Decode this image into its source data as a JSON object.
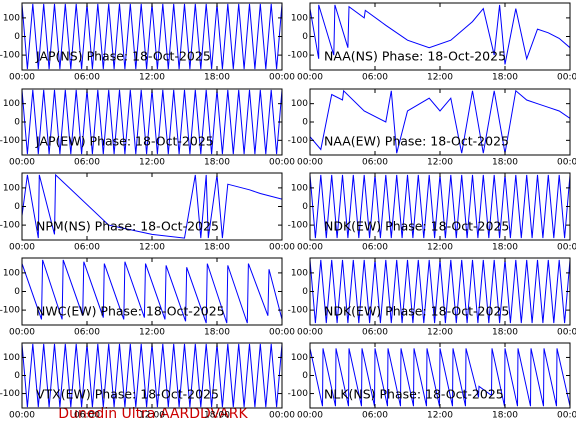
{
  "chart_data": [
    {
      "type": "line",
      "title": "JAP(NS) Phase: 18-Oct-2025",
      "xlim": [
        0,
        24
      ],
      "ylim": [
        -180,
        180
      ],
      "xticks": [
        {
          "value": 0,
          "label": "00:00"
        },
        {
          "value": 6,
          "label": "06:00"
        },
        {
          "value": 12,
          "label": "12:00"
        },
        {
          "value": 18,
          "label": "18:00"
        },
        {
          "value": 24,
          "label": "00:00"
        }
      ],
      "yticks": [
        100,
        0,
        -100
      ],
      "x": [
        0,
        0.5,
        1,
        1.5,
        2,
        2.5,
        3,
        3.5,
        4,
        4.5,
        5,
        5.5,
        6,
        6.5,
        7,
        7.5,
        8,
        8.5,
        9,
        9.5,
        10,
        10.5,
        11,
        11.5,
        12,
        12.5,
        13,
        13.5,
        14,
        14.5,
        15,
        15.5,
        16,
        16.5,
        17,
        17.5,
        18,
        18.5,
        19,
        19.5,
        20,
        20.5,
        21,
        21.5,
        22,
        22.5,
        23,
        23.5,
        24
      ],
      "series": [
        {
          "color": "#0000ff",
          "values": [
            175,
            -175,
            175,
            -175,
            175,
            -175,
            175,
            -175,
            175,
            -175,
            175,
            -175,
            175,
            -175,
            175,
            -175,
            175,
            -175,
            175,
            -175,
            175,
            -175,
            175,
            -175,
            175,
            -175,
            175,
            -175,
            175,
            -175,
            175,
            -175,
            175,
            -175,
            175,
            -175,
            175,
            -175,
            175,
            -175,
            175,
            -175,
            175,
            -175,
            175,
            -175,
            175,
            -175,
            175
          ]
        }
      ]
    },
    {
      "type": "line",
      "title": "NAA(NS) Phase: 18-Oct-2025",
      "xlim": [
        0,
        24
      ],
      "ylim": [
        -180,
        180
      ],
      "xticks": [
        {
          "value": 0,
          "label": "00:00"
        },
        {
          "value": 6,
          "label": "06:00"
        },
        {
          "value": 12,
          "label": "12:00"
        },
        {
          "value": 18,
          "label": "18:00"
        },
        {
          "value": 24,
          "label": "00:00"
        }
      ],
      "yticks": [
        100,
        0,
        -100
      ],
      "x": [
        0,
        0.8,
        0.8,
        2.2,
        2.3,
        3.5,
        3.6,
        5,
        5.1,
        7,
        9,
        11,
        13,
        15,
        16,
        17,
        17.5,
        18,
        19,
        20,
        21,
        22,
        23,
        24
      ],
      "series": [
        {
          "color": "#0000ff",
          "values": [
            150,
            -120,
            170,
            -100,
            170,
            -60,
            160,
            100,
            140,
            60,
            -20,
            -60,
            -20,
            80,
            150,
            -100,
            170,
            -150,
            150,
            -120,
            40,
            20,
            -10,
            -60
          ]
        }
      ]
    },
    {
      "type": "line",
      "title": "JAP(EW) Phase: 18-Oct-2025",
      "xlim": [
        0,
        24
      ],
      "ylim": [
        -180,
        180
      ],
      "xticks": [
        {
          "value": 0,
          "label": "00:00"
        },
        {
          "value": 6,
          "label": "06:00"
        },
        {
          "value": 12,
          "label": "12:00"
        },
        {
          "value": 18,
          "label": "18:00"
        },
        {
          "value": 24,
          "label": "00:00"
        }
      ],
      "yticks": [
        100,
        0,
        -100
      ],
      "x": [
        0,
        0.5,
        1,
        1.5,
        2,
        2.5,
        3,
        3.5,
        4,
        4.5,
        5,
        5.5,
        6,
        6.5,
        7,
        7.5,
        8,
        8.5,
        9,
        9.5,
        10,
        10.5,
        11,
        11.5,
        12,
        12.5,
        13,
        13.5,
        14,
        14.5,
        15,
        15.5,
        16,
        16.5,
        17,
        17.5,
        18,
        18.5,
        19,
        19.5,
        20,
        20.5,
        21,
        21.5,
        22,
        22.5,
        23,
        23.5,
        24
      ],
      "series": [
        {
          "color": "#0000ff",
          "values": [
            175,
            -175,
            175,
            -175,
            175,
            -175,
            175,
            -175,
            175,
            -175,
            175,
            -175,
            175,
            -175,
            175,
            -175,
            175,
            -175,
            175,
            -175,
            175,
            -175,
            175,
            -175,
            175,
            -175,
            175,
            -175,
            175,
            -175,
            175,
            -175,
            175,
            -175,
            175,
            -175,
            175,
            -175,
            175,
            -175,
            175,
            -175,
            175,
            -175,
            175,
            -175,
            175,
            -175,
            175
          ]
        }
      ]
    },
    {
      "type": "line",
      "title": "NAA(EW) Phase: 18-Oct-2025",
      "xlim": [
        0,
        24
      ],
      "ylim": [
        -180,
        180
      ],
      "xticks": [
        {
          "value": 0,
          "label": "00:00"
        },
        {
          "value": 6,
          "label": "06:00"
        },
        {
          "value": 12,
          "label": "12:00"
        },
        {
          "value": 18,
          "label": "18:00"
        },
        {
          "value": 24,
          "label": "00:00"
        }
      ],
      "yticks": [
        100,
        0,
        -100
      ],
      "x": [
        0,
        1,
        2,
        3,
        3.1,
        5,
        7,
        7.5,
        8,
        9,
        11,
        12,
        13,
        14,
        15,
        16,
        17,
        18,
        19,
        20,
        21,
        22,
        23,
        24
      ],
      "series": [
        {
          "color": "#0000ff",
          "values": [
            -80,
            -150,
            150,
            120,
            170,
            60,
            0,
            170,
            -170,
            60,
            130,
            60,
            130,
            -170,
            170,
            -170,
            170,
            -170,
            170,
            120,
            100,
            80,
            60,
            20
          ]
        }
      ]
    },
    {
      "type": "line",
      "title": "NPM(NS) Phase: 18-Oct-2025",
      "xlim": [
        0,
        24
      ],
      "ylim": [
        -180,
        180
      ],
      "xticks": [
        {
          "value": 0,
          "label": "00:00"
        },
        {
          "value": 6,
          "label": "06:00"
        },
        {
          "value": 12,
          "label": "12:00"
        },
        {
          "value": 18,
          "label": "18:00"
        },
        {
          "value": 24,
          "label": "00:00"
        }
      ],
      "yticks": [
        100,
        0,
        -100
      ],
      "x": [
        0,
        0.5,
        1.5,
        1.6,
        3,
        3.1,
        8,
        12,
        15,
        16,
        16.5,
        17,
        17.2,
        18,
        18.5,
        19,
        21,
        22,
        24
      ],
      "series": [
        {
          "color": "#0000ff",
          "values": [
            -50,
            170,
            -170,
            170,
            -150,
            170,
            -100,
            -150,
            -170,
            170,
            -170,
            170,
            -170,
            170,
            -170,
            120,
            90,
            70,
            40
          ]
        }
      ]
    },
    {
      "type": "line",
      "title": "NDK(EW) Phase: 18-Oct-2025",
      "xlim": [
        0,
        24
      ],
      "ylim": [
        -180,
        180
      ],
      "xticks": [
        {
          "value": 0,
          "label": "00:00"
        },
        {
          "value": 6,
          "label": "06:00"
        },
        {
          "value": 12,
          "label": "12:00"
        },
        {
          "value": 18,
          "label": "18:00"
        },
        {
          "value": 24,
          "label": "00:00"
        }
      ],
      "yticks": [
        100,
        0,
        -100
      ],
      "x": [
        0,
        0.5,
        1,
        1.5,
        2,
        2.5,
        3,
        3.5,
        4,
        4.5,
        5,
        5.5,
        6,
        6.5,
        7,
        7.5,
        8,
        8.5,
        9,
        9.5,
        10,
        10.5,
        11,
        11.5,
        12,
        12.5,
        13,
        13.5,
        14,
        14.5,
        15,
        15.5,
        16,
        16.5,
        17,
        17.5,
        18,
        18.5,
        19,
        19.5,
        20,
        20.5,
        21,
        21.5,
        22,
        22.5,
        23,
        23.5,
        24
      ],
      "series": [
        {
          "color": "#0000ff",
          "values": [
            170,
            -170,
            170,
            -170,
            170,
            -170,
            170,
            -170,
            170,
            -170,
            170,
            -170,
            170,
            -170,
            170,
            -170,
            170,
            -170,
            170,
            -170,
            170,
            -170,
            170,
            -170,
            170,
            -170,
            170,
            -170,
            170,
            -170,
            170,
            -170,
            170,
            -170,
            170,
            -170,
            170,
            -170,
            170,
            -170,
            170,
            -170,
            170,
            -170,
            170,
            -170,
            170,
            -170,
            170
          ]
        }
      ]
    },
    {
      "type": "line",
      "title": "NWC(EW) Phase: 18-Oct-2025",
      "xlim": [
        0,
        24
      ],
      "ylim": [
        -180,
        180
      ],
      "xticks": [
        {
          "value": 0,
          "label": "00:00"
        },
        {
          "value": 6,
          "label": "06:00"
        },
        {
          "value": 12,
          "label": "12:00"
        },
        {
          "value": 18,
          "label": "18:00"
        },
        {
          "value": 24,
          "label": "00:00"
        }
      ],
      "yticks": [
        100,
        0,
        -100
      ],
      "x": [
        0,
        1.8,
        1.9,
        3.7,
        3.8,
        5.6,
        5.7,
        7.5,
        7.6,
        9.4,
        9.5,
        11.3,
        11.4,
        13.2,
        13.3,
        15.1,
        15.2,
        17,
        17.1,
        18.9,
        19,
        20.8,
        20.9,
        22.7,
        22.8,
        24
      ],
      "series": [
        {
          "color": "#0000ff",
          "values": [
            150,
            -150,
            170,
            -150,
            170,
            -130,
            160,
            -140,
            150,
            -150,
            160,
            -140,
            150,
            -150,
            140,
            -160,
            130,
            -170,
            150,
            -170,
            140,
            -170,
            150,
            -130,
            120,
            -150
          ]
        }
      ]
    },
    {
      "type": "line",
      "title": "NDK(EW) Phase: 18-Oct-2025",
      "xlim": [
        0,
        24
      ],
      "ylim": [
        -180,
        180
      ],
      "xticks": [
        {
          "value": 0,
          "label": "00:00"
        },
        {
          "value": 6,
          "label": "06:00"
        },
        {
          "value": 12,
          "label": "12:00"
        },
        {
          "value": 18,
          "label": "18:00"
        },
        {
          "value": 24,
          "label": "00:00"
        }
      ],
      "yticks": [
        100,
        0,
        -100
      ],
      "x": [
        0,
        0.5,
        1,
        1.5,
        2,
        2.5,
        3,
        3.5,
        4,
        4.5,
        5,
        5.5,
        6,
        6.5,
        7,
        7.5,
        8,
        8.5,
        9,
        9.5,
        10,
        10.5,
        11,
        11.5,
        12,
        12.5,
        13,
        13.5,
        14,
        14.5,
        15,
        15.5,
        16,
        16.5,
        17,
        17.5,
        18,
        18.5,
        19,
        19.5,
        20,
        20.5,
        21,
        21.5,
        22,
        22.5,
        23,
        23.5,
        24
      ],
      "series": [
        {
          "color": "#0000ff",
          "values": [
            170,
            -170,
            170,
            -170,
            170,
            -170,
            170,
            -170,
            170,
            -170,
            170,
            -170,
            170,
            -170,
            170,
            -170,
            170,
            -170,
            170,
            -170,
            170,
            -170,
            170,
            -170,
            170,
            -170,
            170,
            -170,
            170,
            -170,
            170,
            -170,
            170,
            -170,
            170,
            -170,
            170,
            -170,
            170,
            -170,
            170,
            -170,
            170,
            -170,
            170,
            -170,
            170,
            -170,
            170
          ]
        }
      ]
    },
    {
      "type": "line",
      "title": "VTX(EW) Phase: 18-Oct-2025",
      "xlim": [
        0,
        24
      ],
      "ylim": [
        -180,
        180
      ],
      "xticks": [
        {
          "value": 0,
          "label": "00:00"
        },
        {
          "value": 6,
          "label": "06:00"
        },
        {
          "value": 12,
          "label": "12:00"
        },
        {
          "value": 18,
          "label": "18:00"
        },
        {
          "value": 24,
          "label": "00:00"
        }
      ],
      "yticks": [
        100,
        0,
        -100
      ],
      "x": [
        0,
        0.5,
        1,
        1.5,
        2,
        2.5,
        3,
        3.5,
        4,
        4.5,
        5,
        5.5,
        6,
        6.5,
        7,
        7.5,
        8,
        8.5,
        9,
        9.5,
        10,
        10.5,
        11,
        11.5,
        12,
        12.5,
        13,
        13.5,
        14,
        14.5,
        15,
        15.5,
        16,
        16.5,
        17,
        17.5,
        18,
        18.5,
        19,
        19.5,
        20,
        20.5,
        21,
        21.5,
        22,
        22.5,
        23,
        23.5,
        24
      ],
      "series": [
        {
          "color": "#0000ff",
          "values": [
            175,
            -175,
            175,
            -175,
            175,
            -175,
            175,
            -175,
            175,
            -175,
            175,
            -175,
            175,
            -175,
            175,
            -175,
            175,
            -175,
            175,
            -175,
            175,
            -175,
            175,
            -175,
            175,
            -175,
            175,
            -175,
            175,
            -175,
            175,
            -175,
            175,
            -175,
            175,
            -175,
            175,
            -175,
            175,
            -175,
            175,
            -175,
            175,
            -175,
            175,
            -175,
            175,
            -175,
            175
          ]
        }
      ]
    },
    {
      "type": "line",
      "title": "NLK(NS) Phase: 18-Oct-2025",
      "xlim": [
        0,
        24
      ],
      "ylim": [
        -180,
        180
      ],
      "xticks": [
        {
          "value": 0,
          "label": "00:00"
        },
        {
          "value": 6,
          "label": "06:00"
        },
        {
          "value": 12,
          "label": "12:00"
        },
        {
          "value": 18,
          "label": "18:00"
        },
        {
          "value": 24,
          "label": "00:00"
        }
      ],
      "yticks": [
        100,
        0,
        -100
      ],
      "x": [
        0,
        1.15,
        1.2,
        2.35,
        2.4,
        3.55,
        3.6,
        4.75,
        4.8,
        5.95,
        6,
        7.15,
        7.2,
        8.35,
        8.4,
        9.55,
        9.6,
        10.75,
        10.8,
        11.95,
        12,
        13.15,
        13.2,
        14.35,
        14.4,
        15.55,
        15.6,
        16.75,
        16.8,
        17.95,
        18,
        19.15,
        19.2,
        20.35,
        20.4,
        21.55,
        21.6,
        22.75,
        22.8,
        24
      ],
      "series": [
        {
          "color": "#0000ff",
          "values": [
            150,
            -170,
            150,
            -170,
            150,
            -170,
            150,
            -170,
            150,
            -170,
            150,
            -170,
            150,
            -170,
            150,
            -170,
            150,
            -170,
            150,
            -170,
            150,
            -170,
            150,
            -170,
            150,
            -120,
            -60,
            -110,
            150,
            -170,
            150,
            -170,
            150,
            -170,
            150,
            -170,
            150,
            -170,
            150,
            -170
          ]
        }
      ]
    }
  ],
  "footer": "Dunedin Ultra AARDDVARK"
}
